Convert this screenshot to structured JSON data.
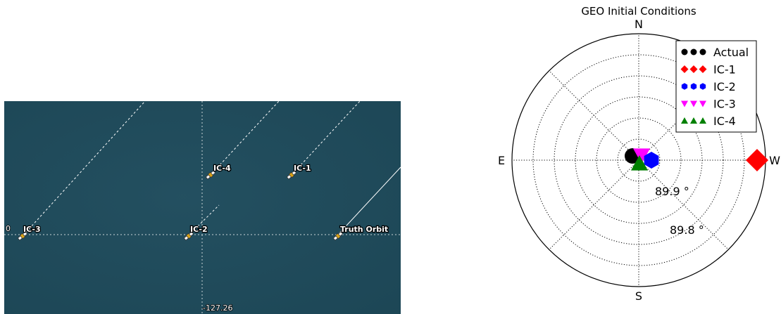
{
  "map": {
    "background_color": "#1f4a5a",
    "longitude_label": "-127.26",
    "latitude_label": "0",
    "satellites": [
      {
        "id": "ic3",
        "label": "IC-3",
        "name": "satellite-ic3"
      },
      {
        "id": "ic2",
        "label": "IC-2",
        "name": "satellite-ic2"
      },
      {
        "id": "ic4",
        "label": "IC-4",
        "name": "satellite-ic4"
      },
      {
        "id": "ic1",
        "label": "IC-1",
        "name": "satellite-ic1"
      },
      {
        "id": "truth",
        "label": "Truth Orbit",
        "name": "satellite-truth-orbit"
      }
    ]
  },
  "chart_data": {
    "type": "scatter",
    "projection": "polar",
    "title": "GEO Initial Conditions",
    "directions": {
      "top": "N",
      "bottom": "S",
      "left": "E",
      "right": "W"
    },
    "radial_labels": [
      "89.9 °",
      "89.8 °"
    ],
    "radial_ticks": [
      90.0,
      89.95,
      89.9,
      89.85,
      89.8,
      89.75,
      89.7
    ],
    "grid": true,
    "legend_position": "top-right",
    "series": [
      {
        "name": "Actual",
        "marker": "circle",
        "color": "#000000",
        "points": [
          {
            "azimuth_deg": 0,
            "elevation_deg": 89.99
          }
        ]
      },
      {
        "name": "IC-1",
        "marker": "diamond",
        "color": "#ff0000",
        "points": [
          {
            "azimuth_deg": 270,
            "elevation_deg": 89.72
          }
        ]
      },
      {
        "name": "IC-2",
        "marker": "hexagon",
        "color": "#0000ff",
        "points": [
          {
            "azimuth_deg": 270,
            "elevation_deg": 89.97
          }
        ]
      },
      {
        "name": "IC-3",
        "marker": "triangle-down",
        "color": "#ff00ff",
        "points": [
          {
            "azimuth_deg": 0,
            "elevation_deg": 89.995
          }
        ]
      },
      {
        "name": "IC-4",
        "marker": "triangle-up",
        "color": "#008000",
        "points": [
          {
            "azimuth_deg": 180,
            "elevation_deg": 89.995
          }
        ]
      }
    ]
  }
}
